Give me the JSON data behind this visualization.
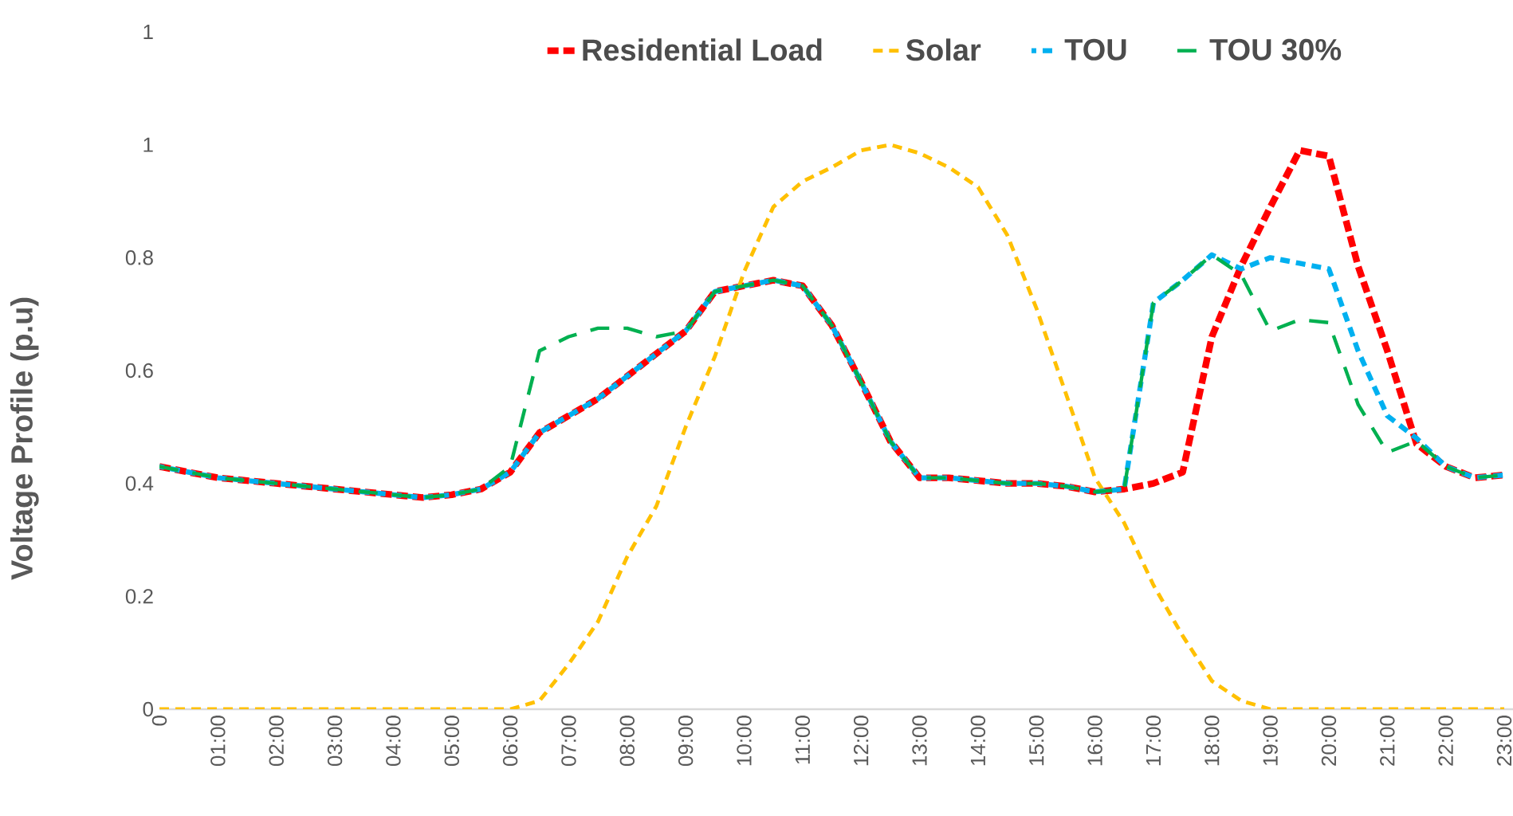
{
  "chart_data": {
    "type": "line",
    "ylabel": "Voltage Profile (p.u)",
    "categories": [
      "0",
      null,
      "01:00",
      null,
      "02:00",
      null,
      "03:00",
      null,
      "04:00",
      null,
      "05:00",
      null,
      "06:00",
      null,
      "07:00",
      null,
      "08:00",
      null,
      "09:00",
      null,
      "10:00",
      null,
      "11:00",
      null,
      "12:00",
      null,
      "13:00",
      null,
      "14:00",
      null,
      "15:00",
      null,
      "16:00",
      null,
      "17:00",
      null,
      "18:00",
      null,
      "19:00",
      null,
      "20:00",
      null,
      "21:00",
      null,
      "22:00",
      null,
      "23:00"
    ],
    "series": [
      {
        "name": "Residential Load",
        "color": "#ff0000",
        "values": [
          0.43,
          0.42,
          0.41,
          0.405,
          0.4,
          0.395,
          0.39,
          0.385,
          0.38,
          0.375,
          0.38,
          0.39,
          0.42,
          0.49,
          0.52,
          0.55,
          0.59,
          0.63,
          0.67,
          0.74,
          0.75,
          0.76,
          0.75,
          0.68,
          0.58,
          0.475,
          0.41,
          0.41,
          0.405,
          0.4,
          0.4,
          0.395,
          0.385,
          0.39,
          0.4,
          0.42,
          0.66,
          0.785,
          0.89,
          0.99,
          0.98,
          0.785,
          0.635,
          0.47,
          0.43,
          0.41,
          0.415
        ]
      },
      {
        "name": "Solar",
        "color": "#ffc000",
        "values": [
          0,
          0,
          0,
          0,
          0,
          0,
          0,
          0,
          0,
          0,
          0,
          0,
          0,
          0.015,
          0.08,
          0.155,
          0.27,
          0.36,
          0.5,
          0.625,
          0.775,
          0.89,
          0.935,
          0.96,
          0.99,
          1.0,
          0.985,
          0.96,
          0.925,
          0.84,
          0.71,
          0.56,
          0.41,
          0.33,
          0.22,
          0.13,
          0.05,
          0.015,
          0,
          0,
          0,
          0,
          0,
          0,
          0,
          0,
          0
        ]
      },
      {
        "name": "TOU",
        "color": "#00b0f0",
        "values": [
          0.43,
          0.42,
          0.41,
          0.405,
          0.4,
          0.395,
          0.39,
          0.385,
          0.38,
          0.375,
          0.38,
          0.39,
          0.42,
          0.49,
          0.52,
          0.55,
          0.59,
          0.63,
          0.67,
          0.74,
          0.75,
          0.76,
          0.75,
          0.68,
          0.58,
          0.475,
          0.41,
          0.41,
          0.405,
          0.4,
          0.4,
          0.395,
          0.385,
          0.39,
          0.72,
          0.76,
          0.805,
          0.78,
          0.8,
          0.79,
          0.78,
          0.635,
          0.52,
          0.48,
          0.43,
          0.41,
          0.415
        ]
      },
      {
        "name": "TOU 30%",
        "color": "#00b050",
        "values": [
          0.43,
          0.42,
          0.41,
          0.405,
          0.4,
          0.395,
          0.39,
          0.385,
          0.38,
          0.375,
          0.38,
          0.39,
          0.43,
          0.635,
          0.66,
          0.675,
          0.675,
          0.66,
          0.67,
          0.74,
          0.75,
          0.76,
          0.75,
          0.68,
          0.58,
          0.475,
          0.41,
          0.41,
          0.405,
          0.4,
          0.4,
          0.395,
          0.385,
          0.39,
          0.72,
          0.76,
          0.805,
          0.77,
          0.67,
          0.69,
          0.685,
          0.54,
          0.455,
          0.475,
          0.43,
          0.41,
          0.415
        ]
      }
    ],
    "ylim": [
      0,
      1.2
    ],
    "yticks": [
      0,
      0.2,
      0.4,
      0.6,
      0.8,
      1,
      {
        "value": 1.2,
        "label": "1"
      }
    ],
    "legend": "top",
    "line_style": "dashed",
    "marker": "none"
  }
}
